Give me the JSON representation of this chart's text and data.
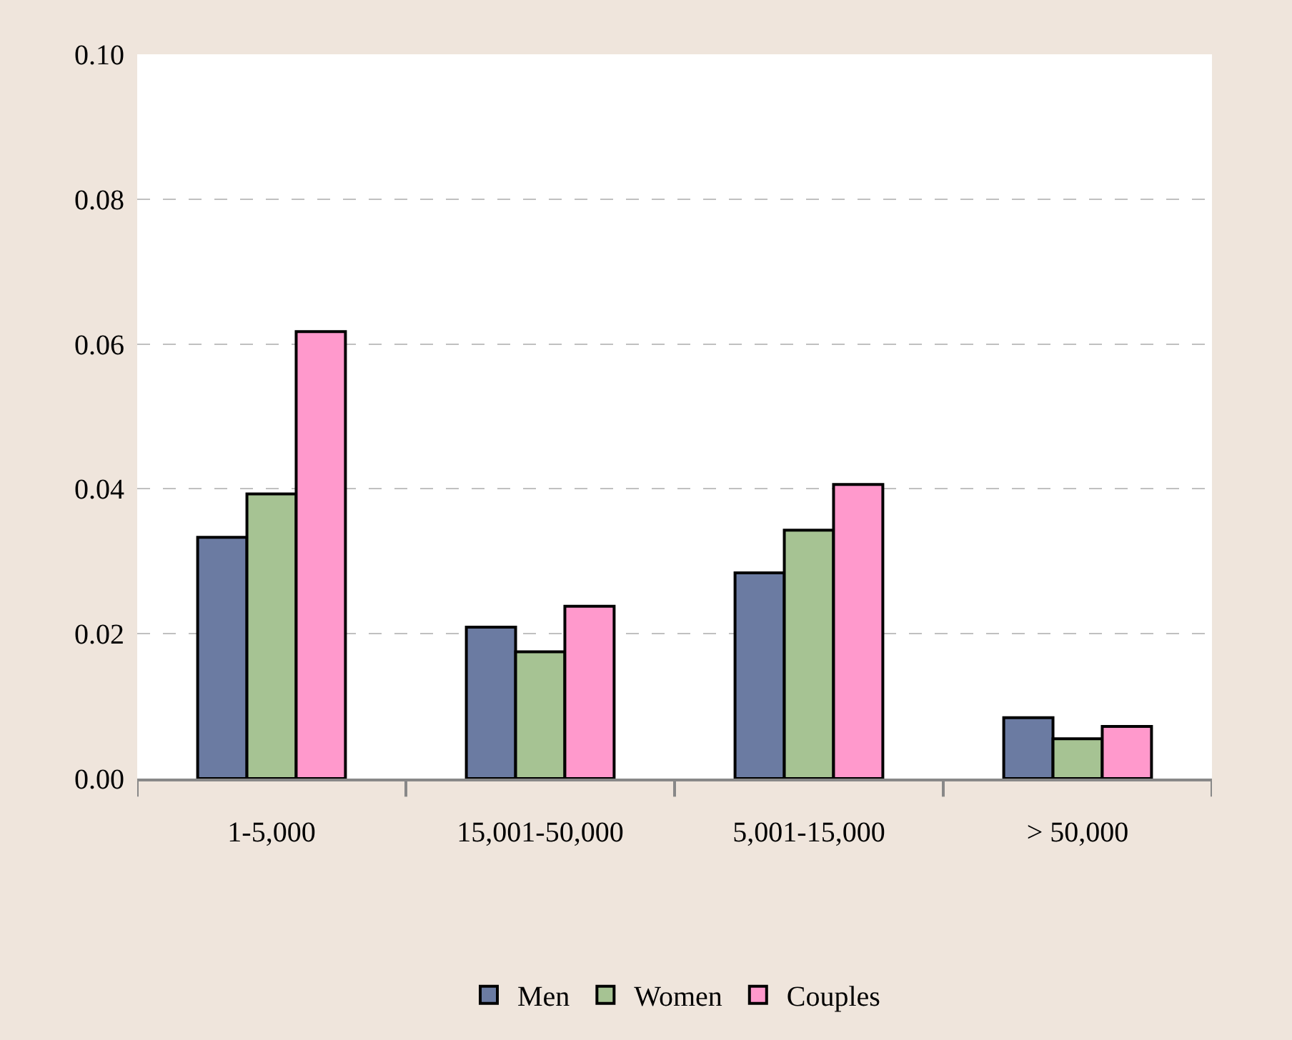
{
  "chart_data": {
    "type": "bar",
    "categories": [
      "1-5,000",
      "15,001-50,000",
      "5,001-15,000",
      "> 50,000"
    ],
    "series": [
      {
        "name": "Men",
        "color": "#6b7ba2",
        "values": [
          0.0333,
          0.0209,
          0.0284,
          0.0084
        ]
      },
      {
        "name": "Women",
        "color": "#a6c393",
        "values": [
          0.0393,
          0.0175,
          0.0343,
          0.0055
        ]
      },
      {
        "name": "Couples",
        "color": "#ff99cc",
        "values": [
          0.0617,
          0.0238,
          0.0406,
          0.0072
        ]
      }
    ],
    "ylim": [
      0,
      0.1
    ],
    "yticks": [
      {
        "value": 0,
        "label": "0.00"
      },
      {
        "value": 0.02,
        "label": "0.02"
      },
      {
        "value": 0.04,
        "label": "0.04"
      },
      {
        "value": 0.06,
        "label": "0.06"
      },
      {
        "value": 0.08,
        "label": "0.08"
      },
      {
        "value": 0.1,
        "label": "0.10"
      }
    ],
    "grid": "y",
    "legend": "bottom"
  }
}
